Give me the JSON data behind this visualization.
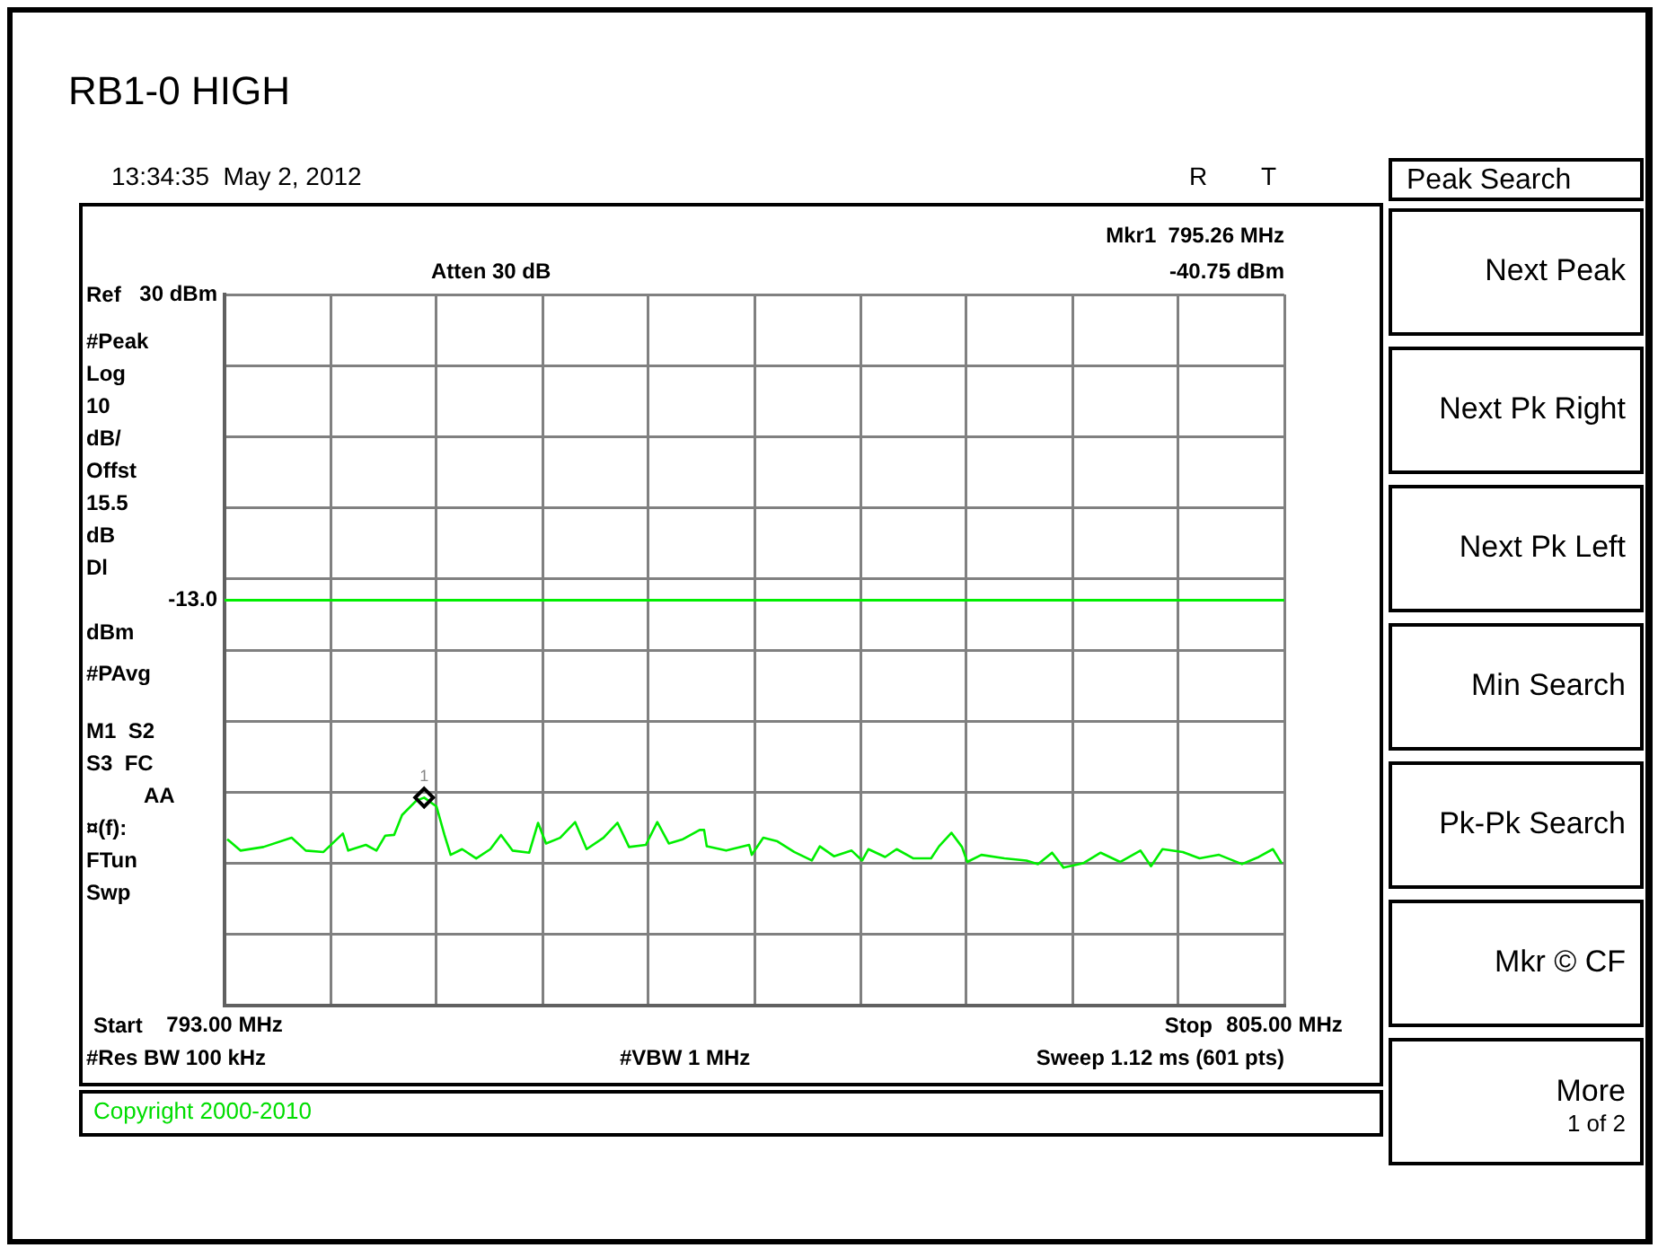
{
  "chart_data": {
    "type": "line",
    "title": "RB1-0 HIGH",
    "x": [
      793.03,
      793.18,
      793.44,
      793.76,
      793.92,
      794.12,
      794.34,
      794.4,
      794.6,
      794.72,
      794.82,
      794.92,
      795.01,
      795.17,
      795.26,
      795.4,
      795.49,
      795.56,
      795.69,
      795.85,
      796.01,
      796.13,
      796.26,
      796.45,
      796.55,
      796.64,
      796.8,
      796.97,
      797.1,
      797.29,
      797.45,
      797.58,
      797.77,
      797.9,
      798.03,
      798.19,
      798.38,
      798.43,
      798.46,
      798.68,
      798.94,
      798.97,
      799.1,
      799.26,
      799.45,
      799.65,
      799.74,
      799.9,
      800.1,
      800.22,
      800.29,
      800.48,
      800.61,
      800.8,
      801.0,
      801.09,
      801.23,
      801.35,
      801.41,
      801.57,
      801.83,
      802.08,
      802.21,
      802.37,
      802.5,
      802.72,
      802.92,
      803.14,
      803.37,
      803.49,
      803.62,
      803.85,
      804.04,
      804.26,
      804.52,
      804.71,
      804.87,
      804.97
    ],
    "series": [
      {
        "color": "#00ee00",
        "values": [
          -46.6,
          -48.2,
          -47.7,
          -46.4,
          -48.2,
          -48.4,
          -45.8,
          -48.2,
          -47.4,
          -48.2,
          -46.1,
          -46.0,
          -43.2,
          -41.2,
          -40.75,
          -42.0,
          -46.0,
          -48.8,
          -48.0,
          -49.3,
          -48.0,
          -46.0,
          -48.2,
          -48.5,
          -44.3,
          -47.2,
          -46.4,
          -44.2,
          -48.0,
          -46.4,
          -44.3,
          -47.7,
          -47.4,
          -44.2,
          -47.2,
          -46.6,
          -45.3,
          -45.3,
          -47.6,
          -48.2,
          -47.4,
          -48.8,
          -46.4,
          -46.9,
          -48.4,
          -49.6,
          -47.6,
          -49.0,
          -48.2,
          -49.6,
          -48.0,
          -49.1,
          -48.0,
          -49.3,
          -49.3,
          -47.6,
          -45.7,
          -47.7,
          -49.8,
          -48.8,
          -49.3,
          -49.6,
          -50.1,
          -48.5,
          -50.6,
          -50.0,
          -48.5,
          -49.8,
          -48.2,
          -50.4,
          -48.0,
          -48.4,
          -49.3,
          -48.8,
          -50.1,
          -49.1,
          -48.0,
          -50.0
        ]
      }
    ],
    "xlim": [
      793,
      805
    ],
    "xticks": [
      {
        "value": 793,
        "label": "793.00 MHz"
      },
      {
        "value": 794.2,
        "label": null
      },
      {
        "value": 795.4,
        "label": null
      },
      {
        "value": 796.6,
        "label": null
      },
      {
        "value": 797.8,
        "label": null
      },
      {
        "value": 799,
        "label": null
      },
      {
        "value": 800.2,
        "label": null
      },
      {
        "value": 801.4,
        "label": null
      },
      {
        "value": 802.6,
        "label": null
      },
      {
        "value": 803.8,
        "label": null
      },
      {
        "value": 805,
        "label": "805.00 MHz"
      }
    ],
    "ylim": [
      -70,
      30
    ],
    "yticks": [
      {
        "value": -70,
        "label": null
      },
      {
        "value": -60,
        "label": null
      },
      {
        "value": -50,
        "label": null
      },
      {
        "value": -40,
        "label": null
      },
      {
        "value": -30,
        "label": null
      },
      {
        "value": -20,
        "label": null
      },
      {
        "value": -13,
        "label": "-13.0"
      },
      {
        "value": -10,
        "label": null
      },
      {
        "value": 0,
        "label": null
      },
      {
        "value": 10,
        "label": null
      },
      {
        "value": 20,
        "label": null
      },
      {
        "value": 30,
        "label": "30 dBm"
      }
    ],
    "grid": true,
    "line_style": "solid",
    "ref_lines": [
      {
        "axis": "y",
        "value": -13,
        "color": "#00ee00"
      }
    ],
    "annotations": [
      "13:34:35  May 2, 2012",
      "R",
      "T",
      "Mkr1  795.26 MHz",
      "-40.75 dBm",
      "Atten 30 dB",
      "Ref",
      "#Peak",
      "Log",
      "10",
      "dB/",
      "Offst",
      "15.5",
      "dB",
      "Dl",
      "dBm",
      "#PAvg",
      "M1  S2",
      "S3  FC",
      "AA",
      "¤(f):",
      "FTun",
      "Swp",
      "Start",
      "Stop",
      "#Res BW 100 kHz",
      "#VBW 1 MHz",
      "Sweep 1.12 ms (601 pts)",
      "Copyright 2000-2010",
      "Peak Search",
      "Next Peak",
      "Next Pk Right",
      "Next Pk Left",
      "Min Search",
      "Pk-Pk Search",
      "Mkr © CF",
      "More",
      "1 of 2",
      {
        "text": "1",
        "x": 795.26,
        "y": -40.75
      }
    ]
  }
}
